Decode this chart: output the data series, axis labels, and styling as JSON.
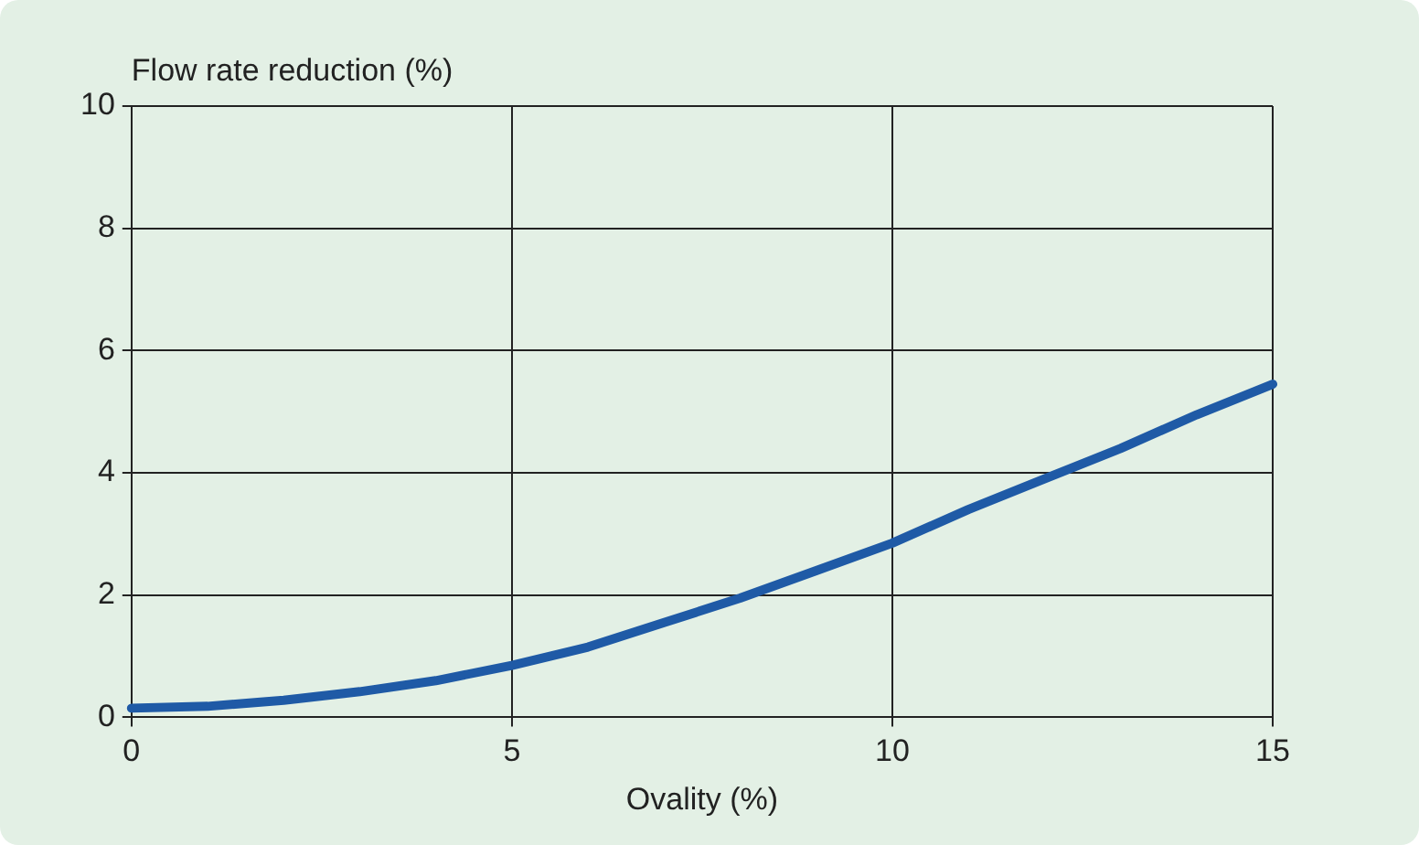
{
  "chart_data": {
    "type": "line",
    "xlabel": "Ovality (%)",
    "ylabel": "Flow rate reduction (%)",
    "x": [
      0,
      1,
      2,
      3,
      4,
      5,
      6,
      7,
      8,
      9,
      10,
      11,
      12,
      13,
      14,
      15
    ],
    "series": [
      {
        "color": "#1f5aa6",
        "values": [
          0.15,
          0.18,
          0.28,
          0.42,
          0.6,
          0.85,
          1.15,
          1.55,
          1.95,
          2.4,
          2.85,
          3.4,
          3.9,
          4.4,
          4.95,
          5.45
        ]
      }
    ],
    "xlim": [
      0,
      15
    ],
    "xticks": [
      0,
      5,
      10,
      15
    ],
    "ylim": [
      0,
      10
    ],
    "yticks": [
      0,
      2,
      4,
      6,
      8,
      10
    ],
    "grid": true,
    "legend": false,
    "marker": "none",
    "line_style": "solid"
  }
}
